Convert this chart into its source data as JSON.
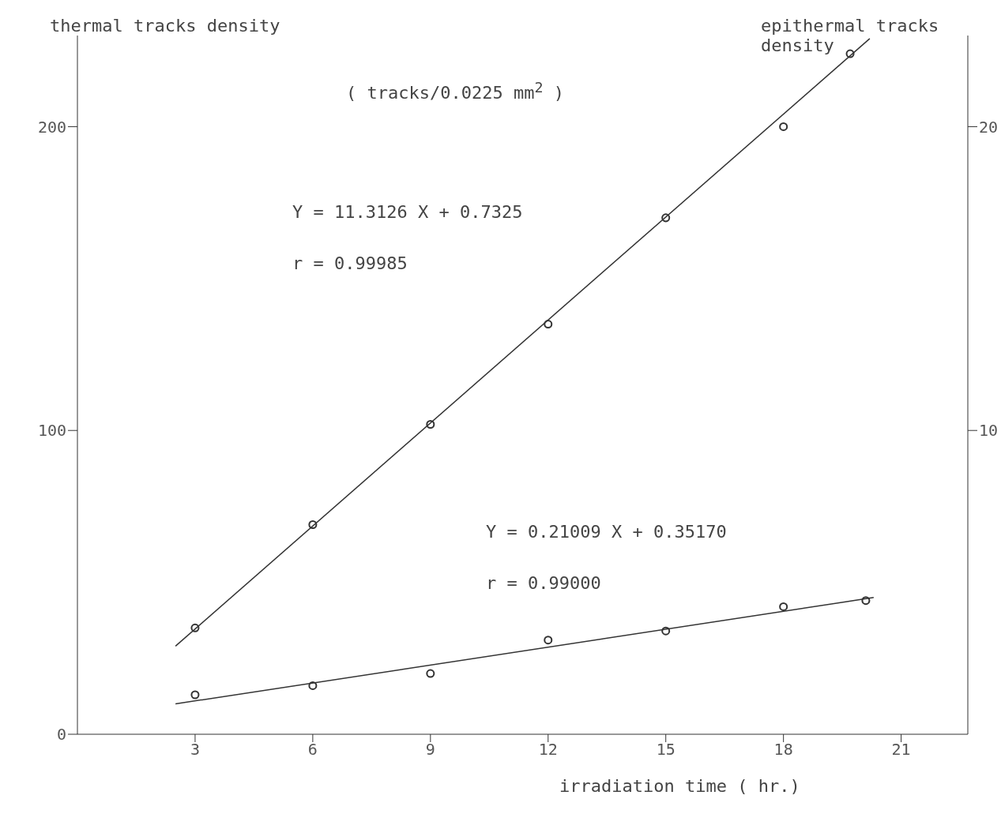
{
  "chart_data": {
    "type": "scatter",
    "title": "( tracks/0.0225 mm$^{2}$ )",
    "xlabel": "irradiation time ( hr.)",
    "ylabel": "thermal tracks density",
    "y2label": "epithermal tracks density",
    "xlim": [
      0,
      22.7
    ],
    "xticks": [
      3,
      6,
      9,
      12,
      15,
      18,
      21
    ],
    "ylim": [
      0,
      230
    ],
    "yticks": [
      0,
      100,
      200
    ],
    "y2lim": [
      0,
      23
    ],
    "y2ticks": [
      10,
      20
    ],
    "line_style": "solid",
    "series": [
      {
        "color": "#333333",
        "marker": "circle",
        "x": [
          3,
          6,
          9,
          12,
          15,
          18,
          19.7
        ],
        "values": [
          35,
          69,
          102,
          135,
          170,
          200,
          224
        ]
      },
      {
        "type": "line",
        "marker": "none",
        "color": "#333333",
        "x": [
          2.5,
          20.2
        ],
        "values": [
          29,
          229
        ]
      },
      {
        "axis": "y2",
        "marker": "circle",
        "color": "#333333",
        "x": [
          3,
          6,
          9,
          12,
          15,
          18,
          20.1
        ],
        "values": [
          1.3,
          1.6,
          2.0,
          3.1,
          3.4,
          4.2,
          4.4
        ]
      },
      {
        "type": "line",
        "marker": "none",
        "axis": "y2",
        "color": "#333333",
        "x": [
          2.5,
          20.3
        ],
        "values": [
          1.0,
          4.5
        ]
      }
    ],
    "annotations": [
      "Y = 11.3126 X + 0.7325",
      "r = 0.99985",
      "Y = 0.21009 X + 0.35170",
      "r = 0.99000"
    ]
  }
}
